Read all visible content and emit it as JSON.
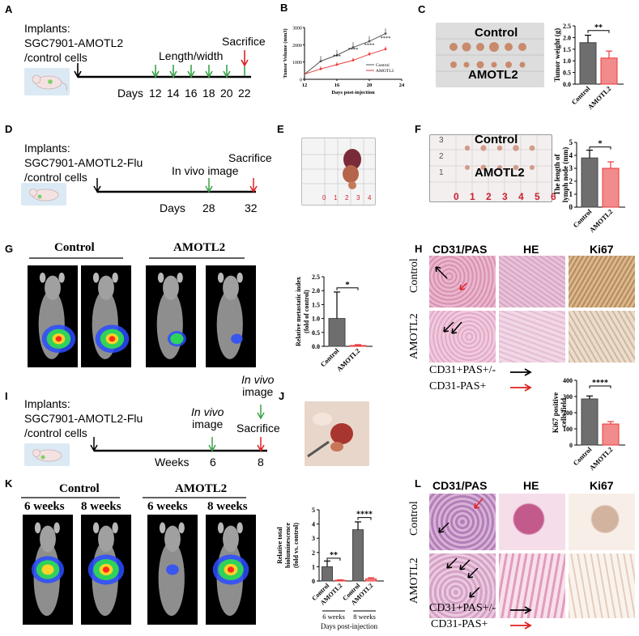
{
  "panel_labels": {
    "A": "A",
    "B": "B",
    "C": "C",
    "D": "D",
    "E": "E",
    "F": "F",
    "G": "G",
    "H": "H",
    "I": "I",
    "J": "J",
    "K": "K",
    "L": "L"
  },
  "A": {
    "implants": "Implants:",
    "cells": "SGC7901-AMOTL2",
    "cells2": "/control cells",
    "length_width": "Length/width",
    "sacrifice": "Sacrifice",
    "days_label": "Days",
    "days": [
      "12",
      "14",
      "16",
      "18",
      "20",
      "22"
    ]
  },
  "D": {
    "implants": "Implants:",
    "cells": "SGC7901-AMOTL2-Flu",
    "cells2": "/control cells",
    "invivo": "In vivo image",
    "sacrifice": "Sacrifice",
    "days_label": "Days",
    "day1": "28",
    "day2": "32"
  },
  "I": {
    "implants": "Implants:",
    "cells": "SGC7901-AMOTL2-Flu",
    "cells2": "/control cells",
    "invivo1a": "In vivo",
    "invivo1b": "image",
    "invivo2a": "In vivo",
    "invivo2b": "image",
    "sacrifice": "Sacrifice",
    "weeks_label": "Weeks",
    "w1": "6",
    "w2": "8"
  },
  "C": {
    "control": "Control",
    "amotl2": "AMOTL2"
  },
  "F": {
    "control": "Control",
    "amotl2": "AMOTL2",
    "ruler": [
      "0",
      "1",
      "2",
      "3",
      "4",
      "5",
      "6"
    ],
    "ruler_v": [
      "3",
      "2",
      "1"
    ]
  },
  "E": {
    "ruler": [
      "0",
      "1",
      "2",
      "3",
      "4"
    ]
  },
  "G": {
    "control": "Control",
    "amotl2": "AMOTL2"
  },
  "K": {
    "control": "Control",
    "amotl2": "AMOTL2",
    "w6": "6 weeks",
    "w8": "8 weeks"
  },
  "H": {
    "cd31pas": "CD31/PAS",
    "he": "HE",
    "ki67": "Ki67",
    "control": "Control",
    "amotl2": "AMOTL2",
    "legend1": "CD31+PAS+/-",
    "legend2": "CD31-PAS+"
  },
  "L": {
    "cd31pas": "CD31/PAS",
    "he": "HE",
    "ki67": "Ki67",
    "control": "Control",
    "amotl2": "AMOTL2",
    "legend1": "CD31+PAS+/-",
    "legend2": "CD31-PAS+"
  },
  "colors": {
    "control_bar": "#6e6e6e",
    "amotl2_bar": "#f28b8b",
    "red_line": "#e83a3a",
    "green_arrow": "#3aa34a",
    "red_arrow": "#e02020"
  },
  "chart_data": [
    {
      "panel": "B",
      "type": "line",
      "xlabel": "Days post-injection",
      "ylabel": "Tumor Volume (mm3)",
      "xlim": [
        12,
        24
      ],
      "ylim": [
        0,
        3000
      ],
      "xticks": [
        "12",
        "16",
        "20",
        "24"
      ],
      "yticks": [
        "0",
        "1000",
        "2000",
        "3000"
      ],
      "series": [
        {
          "name": "Control",
          "x": [
            14,
            16,
            18,
            20,
            22
          ],
          "values": [
            1050,
            1400,
            1850,
            2200,
            2650
          ]
        },
        {
          "name": "AMOTL2",
          "x": [
            14,
            16,
            18,
            20,
            22
          ],
          "values": [
            600,
            850,
            1100,
            1450,
            1750
          ]
        }
      ],
      "annotations": [
        "***",
        "****",
        "****",
        "****"
      ],
      "legend": "right"
    },
    {
      "panel": "C",
      "type": "bar",
      "categories": [
        "Control",
        "AMOTL2"
      ],
      "values": [
        1.78,
        1.12
      ],
      "errors": [
        0.32,
        0.3
      ],
      "ylabel": "Tumor weight (g)",
      "ylim": [
        0,
        2.5
      ],
      "yticks": [
        "0.0",
        "0.5",
        "1.0",
        "1.5",
        "2.0",
        "2.5"
      ],
      "annotation": "**"
    },
    {
      "panel": "F",
      "type": "bar",
      "categories": [
        "Control",
        "AMOTL2"
      ],
      "values": [
        3.8,
        3.0
      ],
      "errors": [
        0.6,
        0.5
      ],
      "ylabel": "The length of lymph node (mm)",
      "ylim": [
        0,
        5
      ],
      "yticks": [
        "0",
        "1",
        "2",
        "3",
        "4",
        "5"
      ],
      "annotation": "*"
    },
    {
      "panel": "G",
      "type": "bar",
      "categories": [
        "Control",
        "AMOTL2"
      ],
      "values": [
        1.0,
        0.03
      ],
      "errors": [
        0.95,
        0.03
      ],
      "ylabel": "Relative metastatic index (fold of control)",
      "ylim": [
        0,
        2.5
      ],
      "yticks": [
        "0.0",
        "0.5",
        "1.0",
        "1.5",
        "2.0",
        "2.5"
      ],
      "annotation": "*"
    },
    {
      "panel": "H",
      "type": "bar",
      "categories": [
        "Control",
        "AMOTL2"
      ],
      "values": [
        285,
        130
      ],
      "errors": [
        18,
        15
      ],
      "ylabel": "Ki67 positive cells/field",
      "ylim": [
        0,
        400
      ],
      "yticks": [
        "0",
        "100",
        "200",
        "300",
        "400"
      ],
      "annotation": "****"
    },
    {
      "panel": "K",
      "type": "bar",
      "categories": [
        "Control",
        "AMOTL2",
        "Control",
        "AMOTL2"
      ],
      "groups": [
        "6 weeks",
        "8 weeks"
      ],
      "values": [
        1.0,
        0.05,
        3.6,
        0.15
      ],
      "errors": [
        0.4,
        0.03,
        0.55,
        0.08
      ],
      "ylabel": "Relative total bioluminescence (fold vs. control)",
      "ylim": [
        0,
        5
      ],
      "yticks": [
        "0",
        "1",
        "2",
        "3",
        "4",
        "5"
      ],
      "annotations": [
        "**",
        "****"
      ],
      "xlabel": "Days post-injection"
    }
  ]
}
